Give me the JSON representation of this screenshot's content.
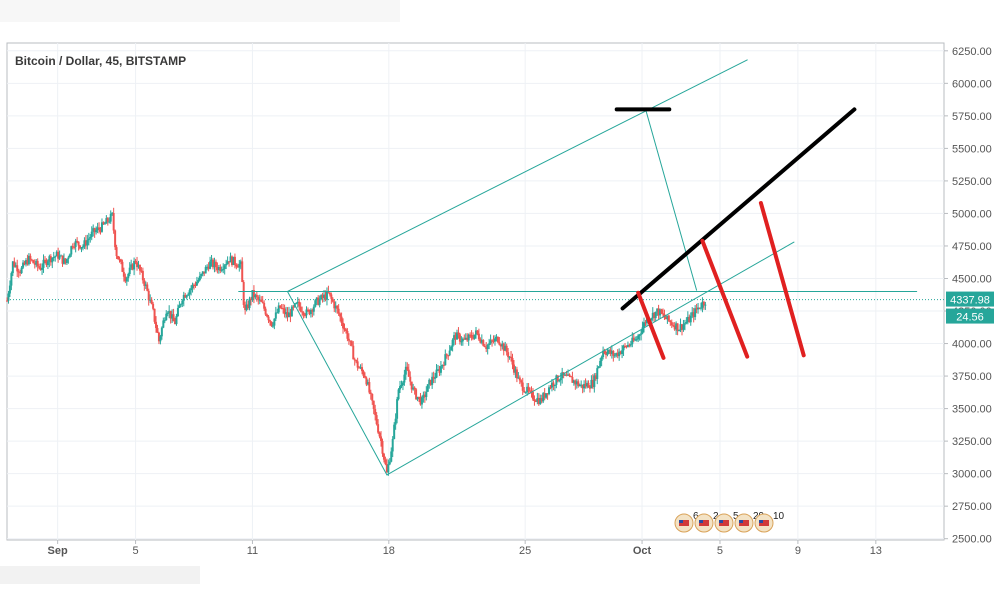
{
  "chart_data": {
    "type": "candlestick",
    "title": "Bitcoin / Dollar, 45, BITSTAMP",
    "symbol": "Bitcoin / Dollar",
    "interval": "45",
    "exchange": "BITSTAMP",
    "x_ticks": [
      "Sep",
      "5",
      "11",
      "18",
      "25",
      "Oct",
      "5",
      "9",
      "13"
    ],
    "x_tick_days": [
      1,
      5,
      11,
      18,
      25,
      31,
      35,
      39,
      43
    ],
    "x_range_days": [
      -1.6,
      46.5
    ],
    "y_ticks": [
      "6250.00",
      "6000.00",
      "5750.00",
      "5500.00",
      "5250.00",
      "5000.00",
      "4750.00",
      "4500.00",
      "4250.00",
      "4000.00",
      "3750.00",
      "3500.00",
      "3250.00",
      "3000.00",
      "2750.00",
      "2500.00"
    ],
    "ylim": [
      2490,
      6310
    ],
    "grid": true,
    "last_price": "4337.98",
    "price_label_2": "24.56",
    "last_price_value": 4337.98,
    "price_path": [
      [
        -1.6,
        4330
      ],
      [
        -1.3,
        4620
      ],
      [
        -0.9,
        4560
      ],
      [
        -0.5,
        4650
      ],
      [
        0.1,
        4580
      ],
      [
        0.5,
        4650
      ],
      [
        1.0,
        4680
      ],
      [
        1.4,
        4620
      ],
      [
        1.8,
        4780
      ],
      [
        2.3,
        4750
      ],
      [
        2.8,
        4850
      ],
      [
        3.3,
        4900
      ],
      [
        3.8,
        4980
      ],
      [
        4.0,
        4700
      ],
      [
        4.5,
        4500
      ],
      [
        5.0,
        4640
      ],
      [
        5.5,
        4450
      ],
      [
        5.9,
        4240
      ],
      [
        6.2,
        4020
      ],
      [
        6.6,
        4280
      ],
      [
        7.0,
        4150
      ],
      [
        7.4,
        4360
      ],
      [
        7.8,
        4420
      ],
      [
        8.3,
        4500
      ],
      [
        8.8,
        4620
      ],
      [
        9.3,
        4580
      ],
      [
        9.8,
        4650
      ],
      [
        10.4,
        4600
      ],
      [
        10.6,
        4230
      ],
      [
        11.0,
        4380
      ],
      [
        11.5,
        4300
      ],
      [
        12.0,
        4150
      ],
      [
        12.4,
        4280
      ],
      [
        12.8,
        4210
      ],
      [
        13.3,
        4300
      ],
      [
        13.8,
        4230
      ],
      [
        14.3,
        4320
      ],
      [
        14.9,
        4380
      ],
      [
        15.4,
        4240
      ],
      [
        15.9,
        4050
      ],
      [
        16.3,
        3850
      ],
      [
        16.8,
        3750
      ],
      [
        17.2,
        3500
      ],
      [
        17.6,
        3250
      ],
      [
        17.9,
        3000
      ],
      [
        18.2,
        3250
      ],
      [
        18.5,
        3650
      ],
      [
        18.9,
        3800
      ],
      [
        19.3,
        3620
      ],
      [
        19.7,
        3550
      ],
      [
        20.1,
        3700
      ],
      [
        20.6,
        3800
      ],
      [
        21.0,
        3920
      ],
      [
        21.4,
        4060
      ],
      [
        21.9,
        4020
      ],
      [
        22.5,
        4080
      ],
      [
        23.0,
        3980
      ],
      [
        23.6,
        4040
      ],
      [
        24.2,
        3900
      ],
      [
        24.7,
        3700
      ],
      [
        25.3,
        3600
      ],
      [
        25.8,
        3560
      ],
      [
        26.3,
        3680
      ],
      [
        26.8,
        3750
      ],
      [
        27.4,
        3720
      ],
      [
        27.9,
        3670
      ],
      [
        28.5,
        3700
      ],
      [
        29.0,
        3950
      ],
      [
        29.6,
        3910
      ],
      [
        30.2,
        3980
      ],
      [
        30.7,
        4030
      ],
      [
        31.2,
        4180
      ],
      [
        31.8,
        4250
      ],
      [
        32.3,
        4180
      ],
      [
        32.9,
        4120
      ],
      [
        33.4,
        4180
      ],
      [
        33.9,
        4280
      ],
      [
        34.3,
        4337.98
      ]
    ],
    "trendlines": [
      {
        "name": "channel-upper",
        "color": "#26a69a",
        "width": 1,
        "points": [
          [
            10.3,
            4400
          ],
          [
            12.8,
            4400
          ],
          [
            36.4,
            6180
          ]
        ]
      },
      {
        "name": "channel-lower",
        "color": "#26a69a",
        "width": 1,
        "points": [
          [
            17.9,
            2990
          ],
          [
            38.8,
            4780
          ]
        ]
      },
      {
        "name": "horizontal-level",
        "color": "#26a69a",
        "width": 1,
        "points": [
          [
            10.3,
            4400
          ],
          [
            45.1,
            4400
          ]
        ]
      },
      {
        "name": "left-leg",
        "color": "#26a69a",
        "width": 1,
        "points": [
          [
            12.8,
            4400
          ],
          [
            17.9,
            2990
          ]
        ]
      },
      {
        "name": "projection-drop",
        "color": "#26a69a",
        "width": 1,
        "points": [
          [
            31.2,
            5790
          ],
          [
            33.8,
            4410
          ]
        ]
      },
      {
        "name": "black-top-bar",
        "color": "#000000",
        "width": 4,
        "points": [
          [
            29.7,
            5800
          ],
          [
            32.4,
            5800
          ]
        ]
      },
      {
        "name": "black-trend",
        "color": "#000000",
        "width": 4,
        "points": [
          [
            30.0,
            4270
          ],
          [
            41.9,
            5800
          ]
        ]
      },
      {
        "name": "red-mark-1",
        "color": "#e02020",
        "width": 4,
        "points": [
          [
            30.8,
            4390
          ],
          [
            32.1,
            3890
          ]
        ]
      },
      {
        "name": "red-mark-2",
        "color": "#e02020",
        "width": 4,
        "points": [
          [
            34.1,
            4790
          ],
          [
            36.4,
            3900
          ]
        ]
      },
      {
        "name": "red-mark-3",
        "color": "#e02020",
        "width": 4,
        "points": [
          [
            37.1,
            5080
          ],
          [
            39.3,
            3910
          ]
        ]
      }
    ],
    "event_markers": [
      "6",
      "2",
      "5",
      "29",
      "10"
    ],
    "colors": {
      "up": "#26a69a",
      "down": "#ef5350",
      "grid": "#eef1f5",
      "axis_text": "#555555",
      "last_price_bg": "#26a69a"
    }
  }
}
